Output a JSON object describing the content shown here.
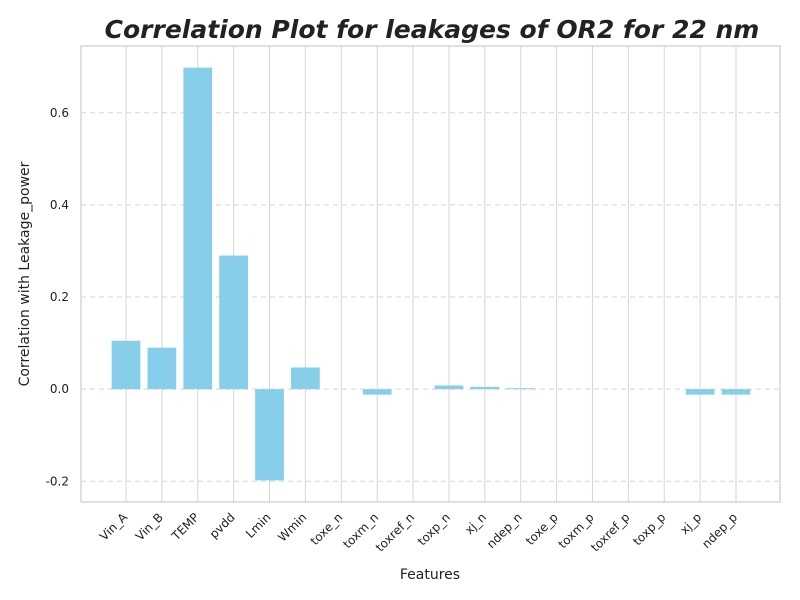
{
  "chart_data": {
    "type": "bar",
    "title": "Correlation Plot for leakages of OR2 for 22 nm",
    "xlabel": "Features",
    "ylabel": "Correlation with Leakage_power",
    "categories": [
      "Vin_A",
      "Vin_B",
      "TEMP",
      "pvdd",
      "Lmin",
      "Wmin",
      "toxe_n",
      "toxm_n",
      "toxref_n",
      "toxp_n",
      "xj_n",
      "ndep_n",
      "toxe_p",
      "toxm_p",
      "toxref_p",
      "toxp_p",
      "xj_p",
      "ndep_p"
    ],
    "values": [
      0.105,
      0.09,
      0.698,
      0.29,
      -0.198,
      0.047,
      0.0,
      -0.012,
      0.0,
      0.008,
      0.005,
      0.002,
      0.0,
      0.0,
      0.0,
      0.0,
      -0.012,
      -0.012
    ],
    "ylim": [
      -0.245,
      0.745
    ],
    "yticks": [
      "-0.2",
      "0.0",
      "0.2",
      "0.4",
      "0.6"
    ],
    "bar_color": "#87CEEB",
    "grid": true,
    "grid_style": "dashed horizontal, solid vertical"
  }
}
